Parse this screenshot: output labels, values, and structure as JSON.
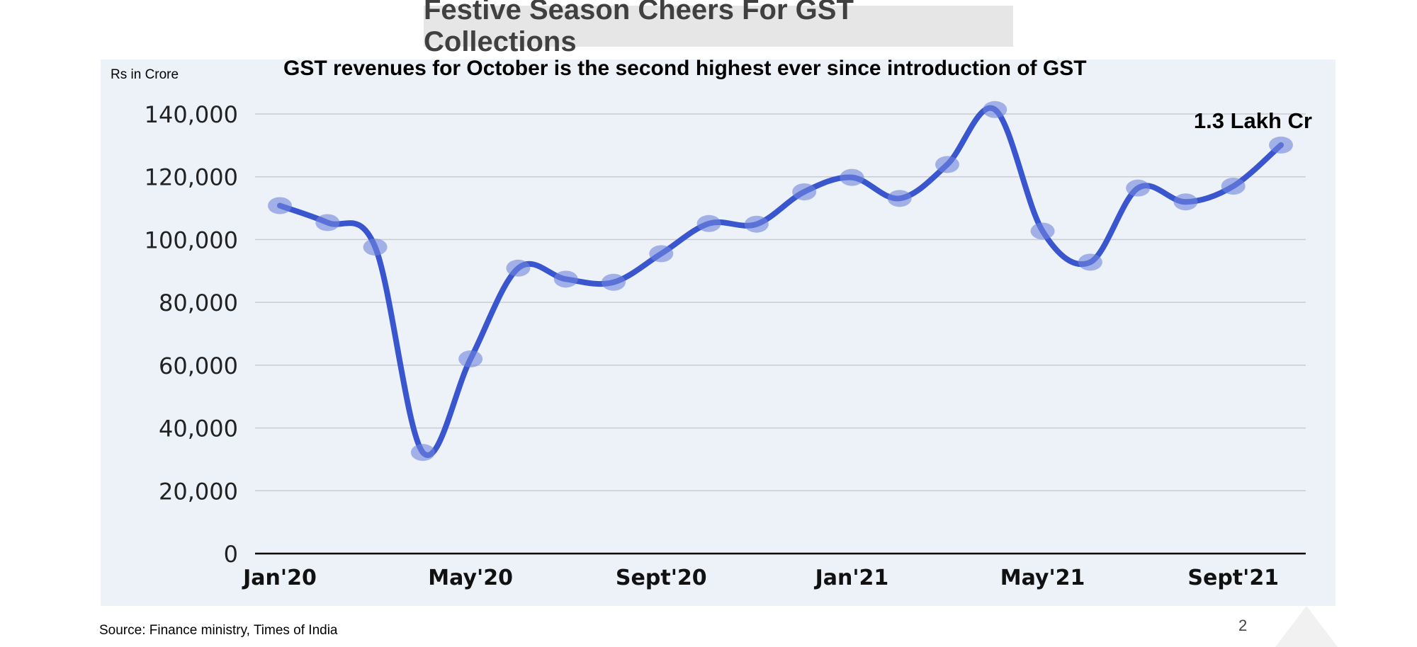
{
  "slide": {
    "title": "Festive Season Cheers For GST Collections",
    "page_number": "2",
    "source": "Source: Finance ministry, Times of India"
  },
  "chart_data": {
    "type": "line",
    "title": "GST revenues for October is the second highest ever since introduction of GST",
    "unit_label": "Rs in Crore",
    "xlabel": "",
    "ylabel": "",
    "ylim": [
      0,
      140000
    ],
    "yticks": [
      0,
      20000,
      40000,
      60000,
      80000,
      100000,
      120000,
      140000
    ],
    "ytick_labels": [
      "0",
      "20,000",
      "40,000",
      "60,000",
      "80,000",
      "100,000",
      "120,000",
      "140,000"
    ],
    "x": [
      "Jan'20",
      "Feb'20",
      "Mar'20",
      "Apr'20",
      "May'20",
      "Jun'20",
      "Jul'20",
      "Aug'20",
      "Sept'20",
      "Oct'20",
      "Nov'20",
      "Dec'20",
      "Jan'21",
      "Feb'21",
      "Mar'21",
      "Apr'21",
      "May'21",
      "Jun'21",
      "Jul'21",
      "Aug'21",
      "Sept'21",
      "Oct'21"
    ],
    "xtick_labels": [
      "Jan'20",
      "May'20",
      "Sept'20",
      "Jan'21",
      "May'21",
      "Sept'21"
    ],
    "series": [
      {
        "values": [
          110800,
          105400,
          97600,
          32200,
          62000,
          90900,
          87400,
          86400,
          95500,
          105100,
          104900,
          115200,
          119800,
          113100,
          123900,
          141400,
          102700,
          92800,
          116400,
          112000,
          117000,
          130100
        ]
      }
    ],
    "annotations": [
      {
        "text": "1.3 Lakh Cr",
        "x": "Oct'21",
        "y": 130100
      }
    ],
    "grid": true,
    "colors": {
      "line": "#3a56cf",
      "marker": "#6f86de",
      "grid": "#c9ccd3",
      "axis": "#000000",
      "background": "#edf1f8"
    }
  }
}
